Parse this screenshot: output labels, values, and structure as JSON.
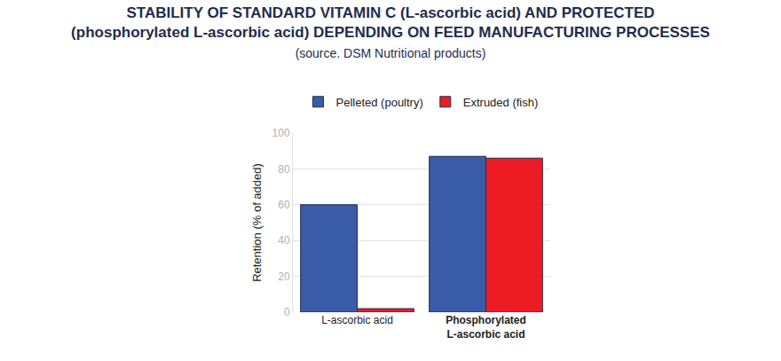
{
  "chart_data": {
    "type": "bar",
    "title": "STABILITY OF STANDARD VITAMIN C (L-ascorbic acid) AND PROTECTED\n(phosphorylated L-ascorbic acid) DEPENDING ON FEED MANUFACTURING PROCESSES",
    "subtitle": "(source. DSM Nutritional products)",
    "y_label": "Retention (% of added)",
    "categories": [
      "L-ascorbic acid",
      "Phosphorylated\nL-ascorbic acid"
    ],
    "series": [
      {
        "name": "Pelleted (poultry)",
        "color": "#3a5ba8",
        "values": [
          60,
          87
        ]
      },
      {
        "name": "Extruded (fish)",
        "color": "#ed1c24",
        "values": [
          2,
          86
        ]
      }
    ],
    "ylim": [
      0,
      100
    ],
    "yticks": [
      0,
      20,
      40,
      60,
      80,
      100
    ],
    "grid": true,
    "legend": "top"
  }
}
